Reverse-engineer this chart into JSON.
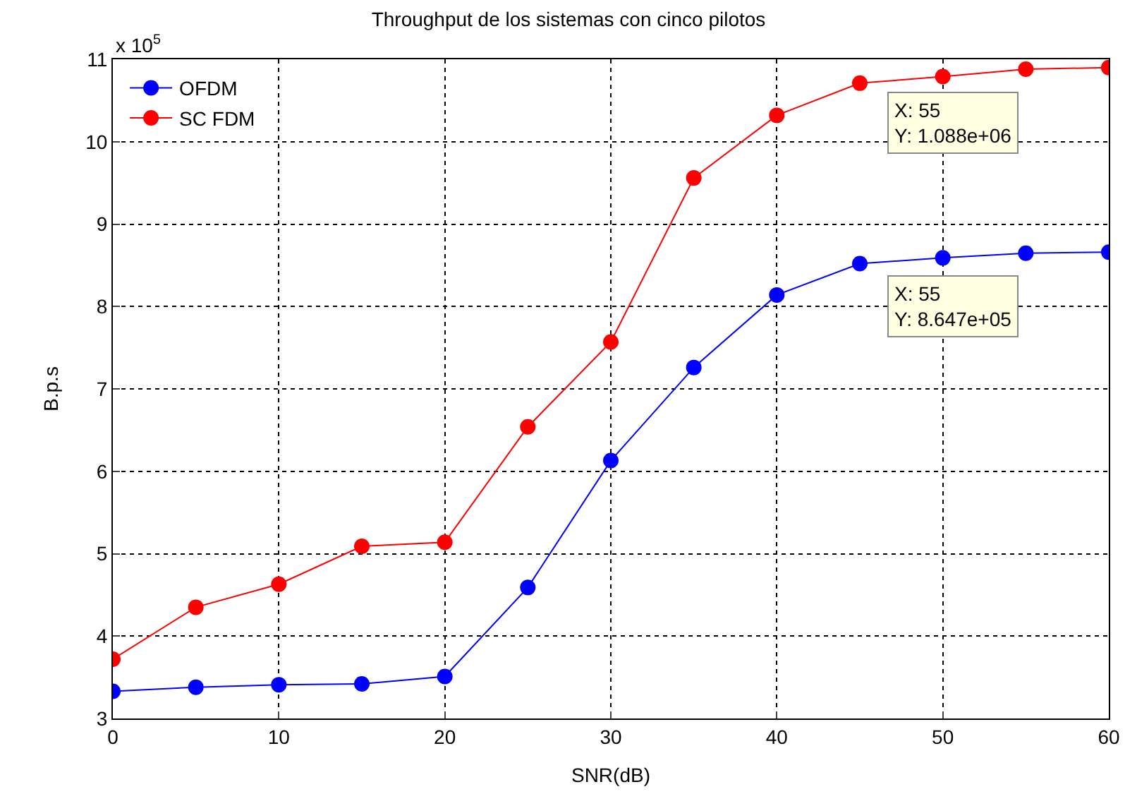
{
  "chart_data": {
    "type": "line",
    "title": "Throughput de los sistemas con cinco pilotos",
    "xlabel": "SNR(dB)",
    "ylabel": "B.p.s",
    "x": [
      0,
      5,
      10,
      15,
      20,
      25,
      30,
      35,
      40,
      45,
      50,
      55,
      60
    ],
    "series": [
      {
        "name": "OFDM",
        "color": "#0000ff",
        "values": [
          3.33,
          3.38,
          3.41,
          3.42,
          3.51,
          4.59,
          6.13,
          7.26,
          8.14,
          8.52,
          8.59,
          8.647,
          8.66
        ]
      },
      {
        "name": "SC FDM",
        "color": "#ff0000",
        "values": [
          3.72,
          4.35,
          4.63,
          5.09,
          5.14,
          6.54,
          7.57,
          9.56,
          10.32,
          10.71,
          10.79,
          10.88,
          10.9
        ]
      }
    ],
    "xlim": [
      0,
      60
    ],
    "xticks": [
      0,
      10,
      20,
      30,
      40,
      50,
      60
    ],
    "ylim": [
      3,
      11
    ],
    "yticks": [
      3,
      4,
      5,
      6,
      7,
      8,
      9,
      10,
      11
    ],
    "annotations": [
      "x 10$^{5}$",
      {
        "text": "X: 55\nY: 1.088e+06",
        "x": 55,
        "y": 10.88
      },
      {
        "text": "X: 55\nY: 8.647e+05",
        "x": 55,
        "y": 8.647
      }
    ],
    "grid": true,
    "legend": "top left",
    "marker": "circle",
    "line_style": "solid"
  }
}
